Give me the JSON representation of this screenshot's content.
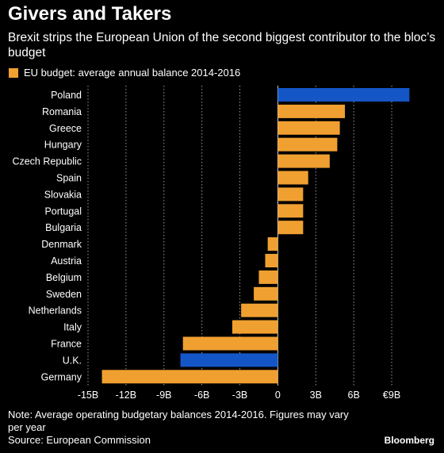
{
  "header": {
    "title": "Givers and Takers",
    "subtitle": "Brexit strips the European Union of the second biggest contributor to the bloc’s budget"
  },
  "legend": {
    "label": "EU budget: average annual balance 2014-2016",
    "color": "#F0A030"
  },
  "colors": {
    "default_bar": "#F0A030",
    "highlight_bar": "#1556C7",
    "background": "#000000"
  },
  "chart_data": {
    "type": "bar",
    "orientation": "horizontal",
    "categories": [
      "Poland",
      "Romania",
      "Greece",
      "Hungary",
      "Czech Republic",
      "Spain",
      "Slovakia",
      "Portugal",
      "Bulgaria",
      "Denmark",
      "Austria",
      "Belgium",
      "Sweden",
      "Netherlands",
      "Italy",
      "France",
      "U.K.",
      "Germany"
    ],
    "values": [
      10.4,
      5.3,
      4.9,
      4.7,
      4.1,
      2.4,
      2.0,
      2.0,
      2.0,
      -0.8,
      -1.0,
      -1.5,
      -1.9,
      -2.9,
      -3.6,
      -7.5,
      -7.7,
      -13.9
    ],
    "highlight": [
      "Poland",
      "U.K."
    ],
    "xlim": [
      -15,
      10.5
    ],
    "xticks": [
      -15,
      -12,
      -9,
      -6,
      -3,
      0,
      3,
      6,
      9
    ],
    "xtick_labels": [
      "-15B",
      "-12B",
      "-9B",
      "-6B",
      "-3B",
      "0",
      "3B",
      "6B",
      "€9B"
    ],
    "grid": "vertical dotted",
    "legend_position": "top-left"
  },
  "footer": {
    "note": "Note: Average operating budgetary balances 2014-2016. Figures may vary per year",
    "source": "Source: European Commission",
    "brand": "Bloomberg"
  }
}
